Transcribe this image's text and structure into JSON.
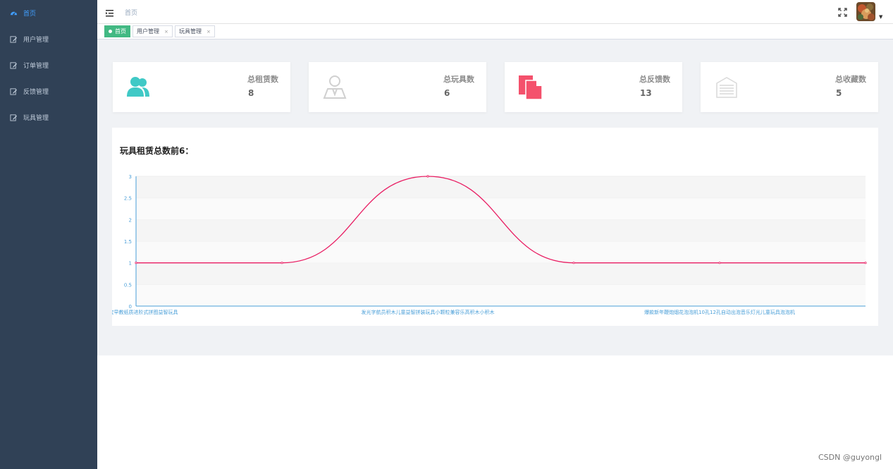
{
  "sidebar": {
    "items": [
      {
        "label": "首页",
        "icon": "dashboard-icon",
        "active": true
      },
      {
        "label": "用户管理",
        "icon": "edit-icon"
      },
      {
        "label": "订单管理",
        "icon": "edit-icon"
      },
      {
        "label": "反馈管理",
        "icon": "edit-icon"
      },
      {
        "label": "玩具管理",
        "icon": "edit-icon"
      }
    ]
  },
  "header": {
    "breadcrumb": "首页"
  },
  "tags": [
    {
      "label": "首页",
      "active": true
    },
    {
      "label": "用户管理",
      "close": "×"
    },
    {
      "label": "玩具管理",
      "close": "×"
    }
  ],
  "cards": [
    {
      "label": "总租赁数",
      "value": "8",
      "icon": "users-icon",
      "color": "#40c9c6"
    },
    {
      "label": "总玩具数",
      "value": "6",
      "icon": "person-icon",
      "color": "#d0d0d0"
    },
    {
      "label": "总反馈数",
      "value": "13",
      "icon": "documents-icon",
      "color": "#f4516c"
    },
    {
      "label": "总收藏数",
      "value": "5",
      "icon": "box-icon",
      "color": "#d9d9d9"
    }
  ],
  "chart_title": "玩具租赁总数前6：",
  "chart_data": {
    "type": "line",
    "smooth": true,
    "categories": [
      "婴儿宝宝早教纸质进阶式拼图益智玩具",
      "",
      "发光字航员积木儿童益智拼装玩具小颗粒兼容乐高积木小积木",
      "",
      "爆款新年鞭炮烟花泡泡机10孔12孔自动出泡音乐灯光儿童玩具泡泡机",
      ""
    ],
    "values": [
      1,
      1,
      3,
      1,
      1,
      1
    ],
    "ylim": [
      0,
      3
    ],
    "yticks": [
      "0",
      "0.5",
      "1",
      "1.5",
      "2",
      "2.5",
      "3"
    ],
    "line_color": "#e91e63",
    "axis_color": "#4a9fd8",
    "grid": true
  },
  "watermark": "CSDN @guyongl"
}
